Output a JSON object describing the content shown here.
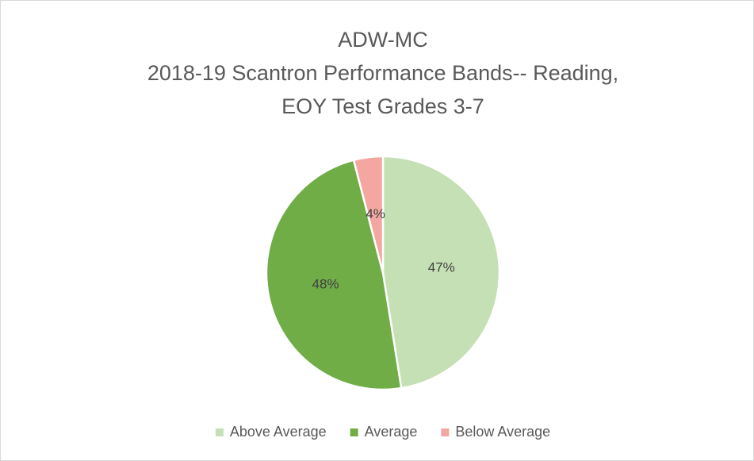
{
  "chart_data": {
    "type": "pie",
    "title": [
      "ADW-MC",
      "2018-19 Scantron Performance  Bands-- Reading,",
      "EOY Test Grades 3-7"
    ],
    "categories": [
      "Above Average",
      "Average",
      "Below Average"
    ],
    "values": [
      47,
      48,
      4
    ],
    "value_labels": [
      "47%",
      "48%",
      "4%"
    ],
    "colors": [
      "#c5e0b4",
      "#70ad47",
      "#f4a6a0"
    ],
    "legend": "bottom"
  }
}
